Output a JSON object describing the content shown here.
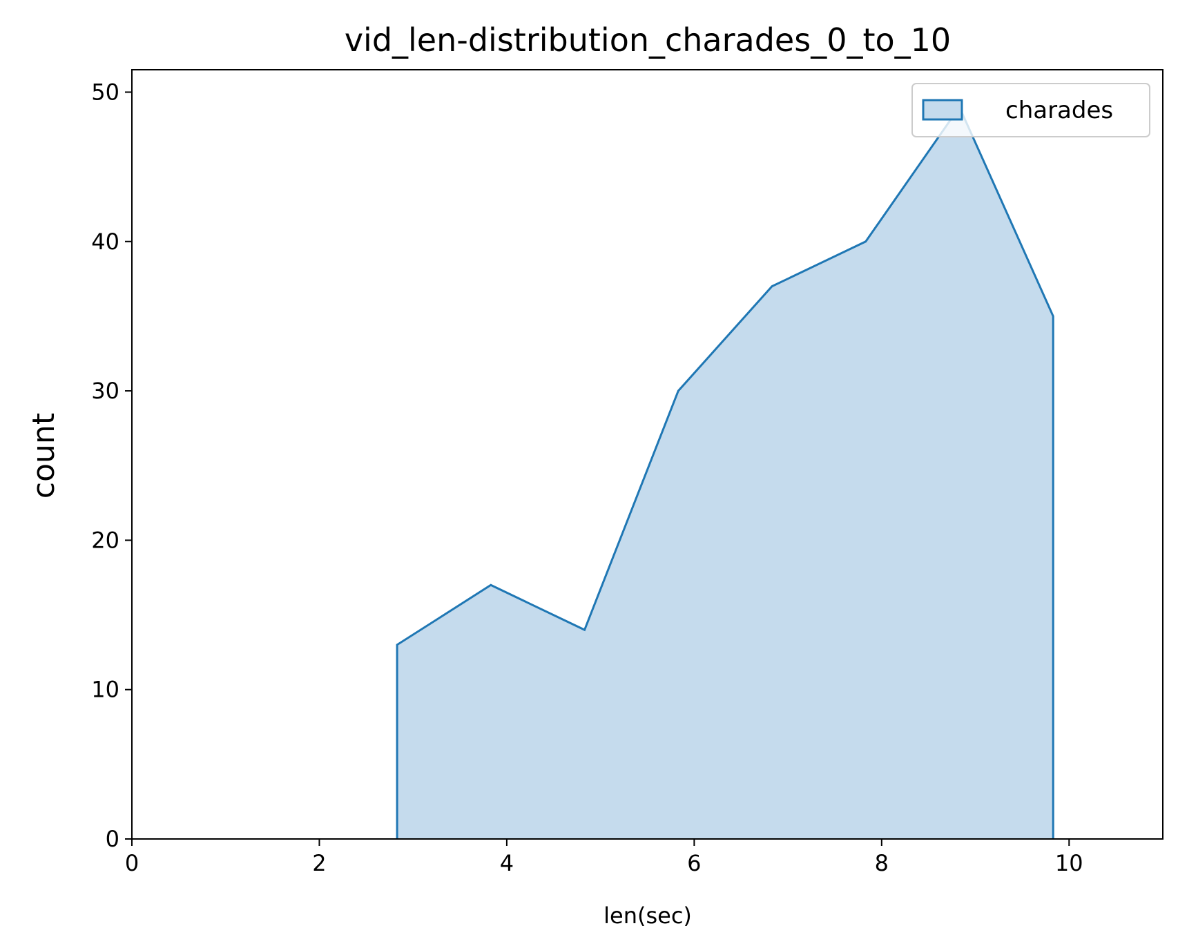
{
  "chart_data": {
    "type": "area",
    "title": "vid_len-distribution_charades_0_to_10",
    "xlabel": "len(sec)",
    "ylabel": "count",
    "xlim": [
      0,
      11
    ],
    "ylim": [
      0,
      51.5
    ],
    "xticks": [
      0,
      2,
      4,
      6,
      8,
      10
    ],
    "yticks": [
      0,
      10,
      20,
      30,
      40,
      50
    ],
    "grid": false,
    "legend_position": "top-right",
    "series": [
      {
        "name": "charades",
        "color": "#1f77b4",
        "fill": "#c5dbed",
        "x": [
          2.83,
          3.83,
          4.83,
          5.83,
          6.83,
          7.83,
          8.83,
          9.83
        ],
        "y": [
          13,
          17,
          14,
          30,
          37,
          40,
          49,
          35
        ]
      }
    ]
  }
}
